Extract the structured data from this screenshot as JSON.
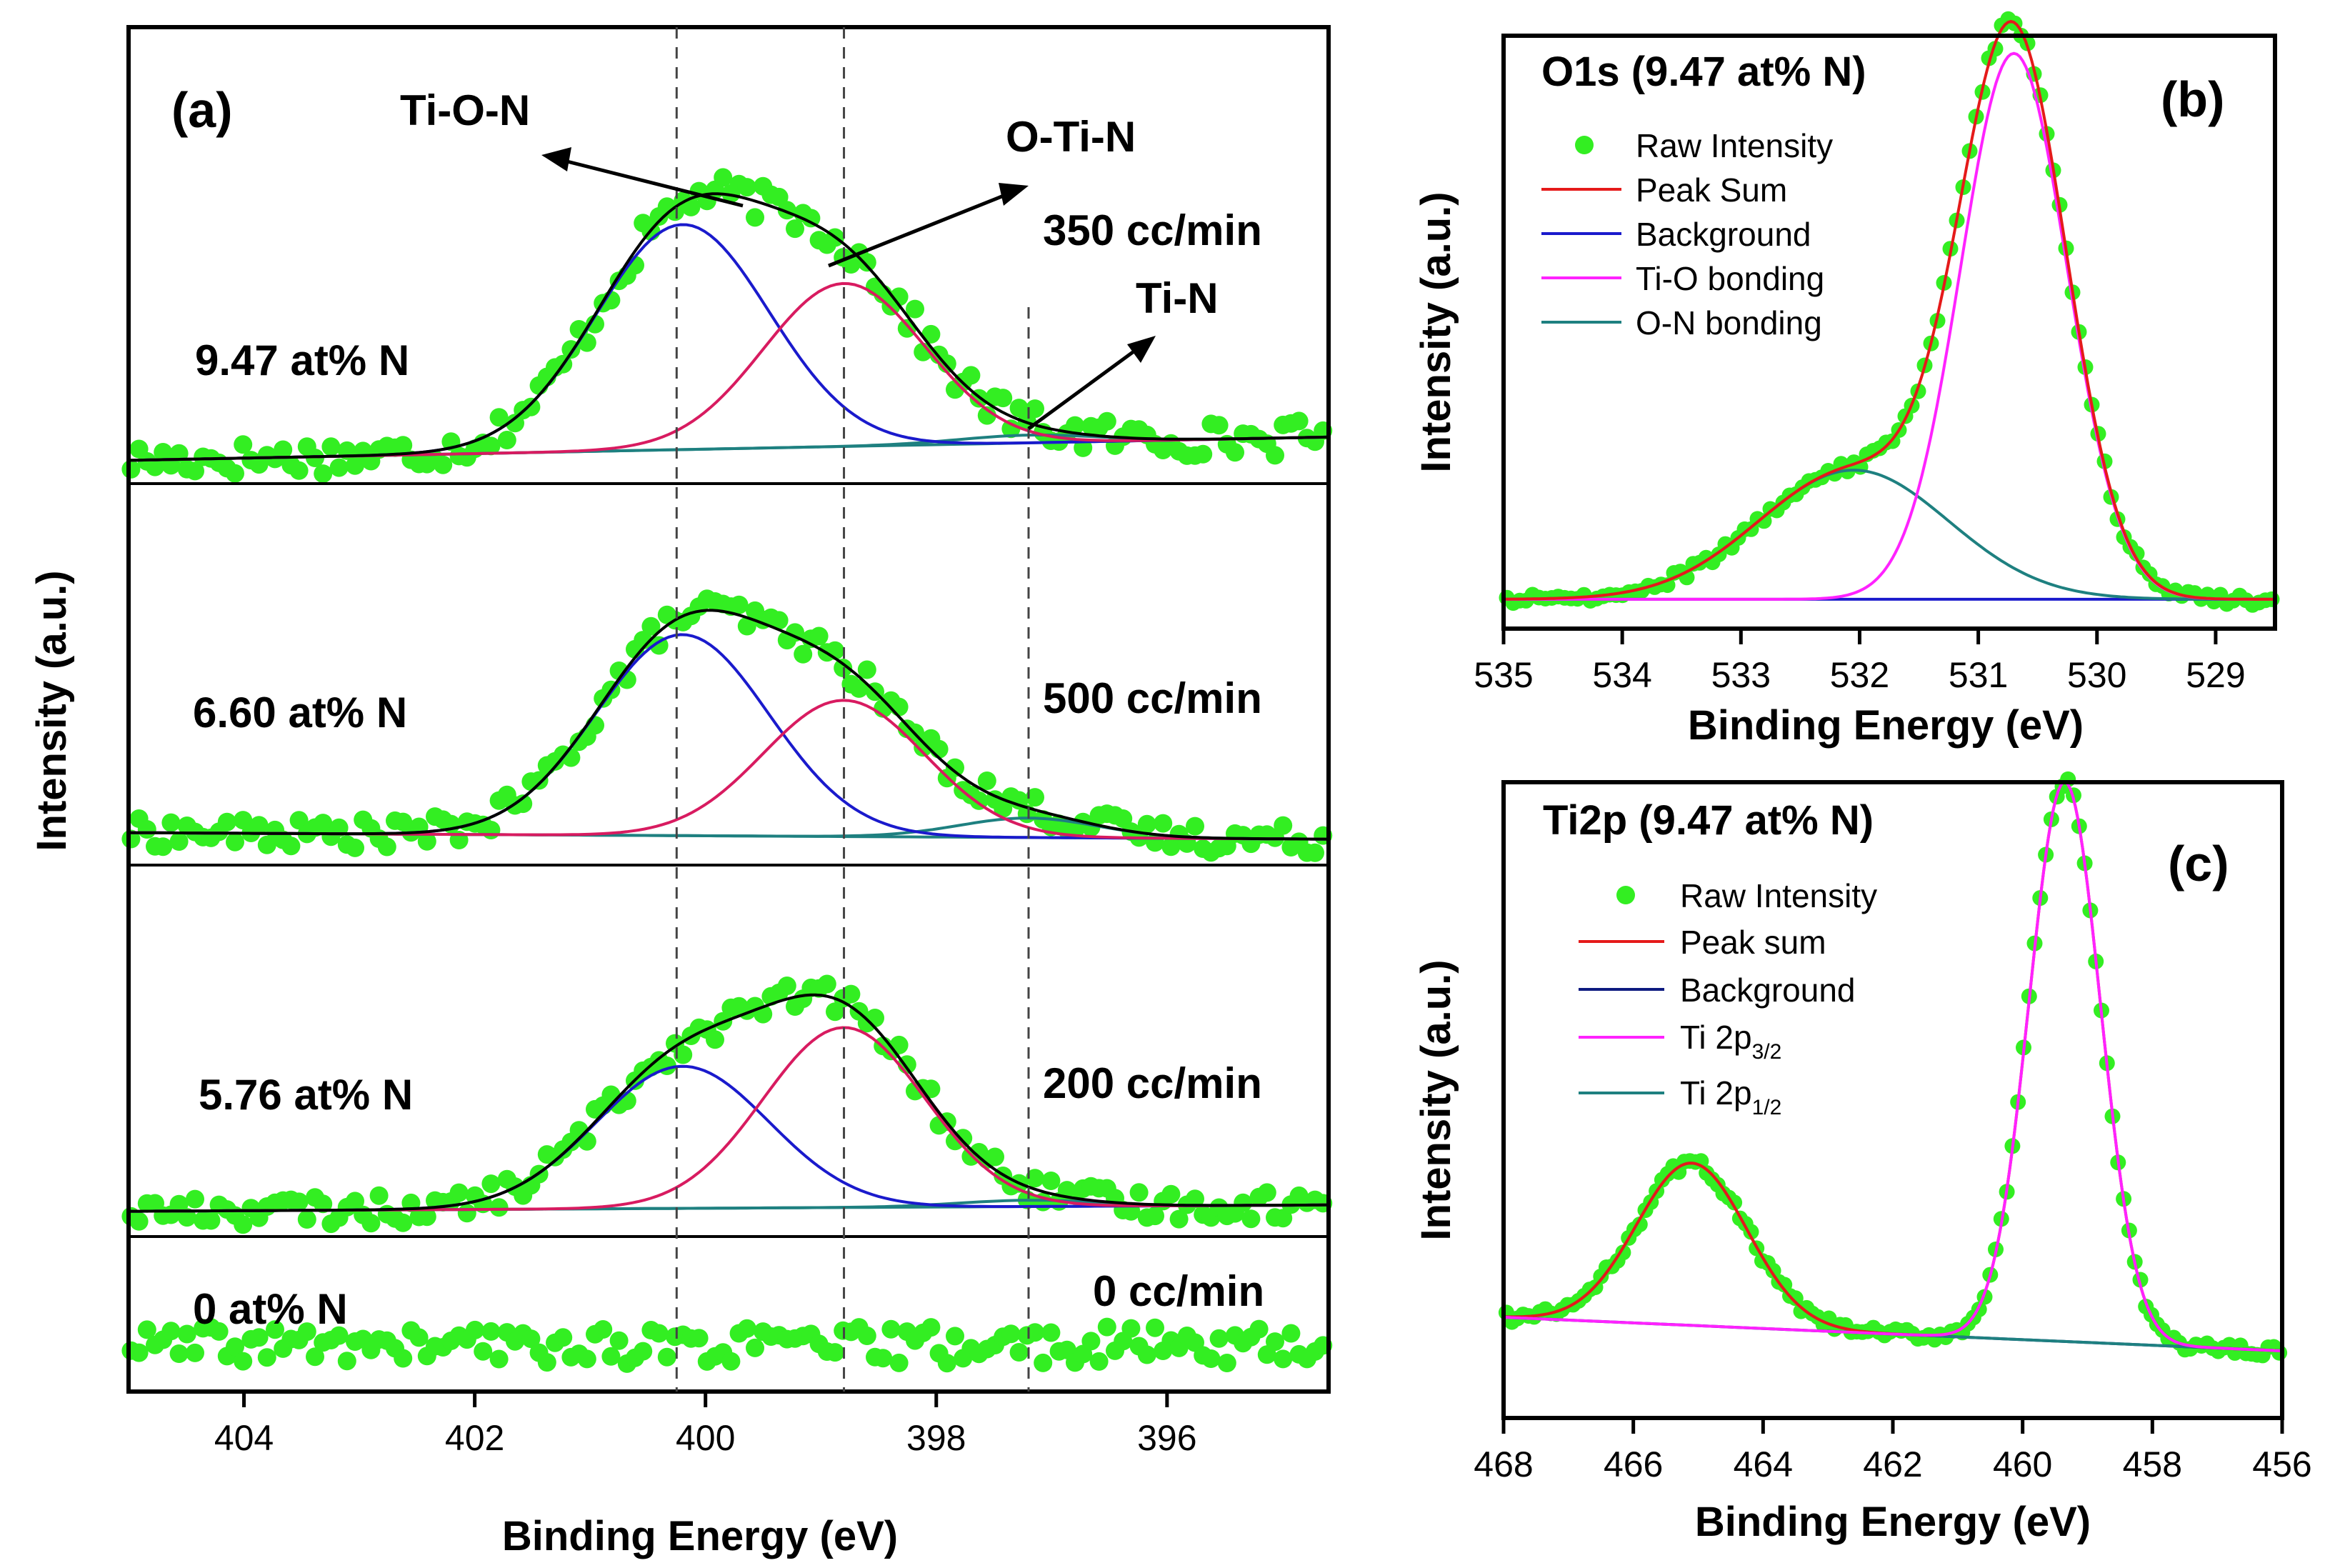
{
  "colors": {
    "raw": "#33ee22",
    "sum_a": "#000000",
    "ti_o_n": "#1a1acc",
    "o_ti_n": "#d81b60",
    "ti_n": "#1e8080",
    "peak_sum": "#e51a1a",
    "background_bc": "#1a1acc",
    "background_c": "#0d1a80",
    "ti_o": "#ff22ff",
    "o_n": "#1e8080",
    "ti2p32": "#ff22ff",
    "ti2p12": "#1e8080"
  },
  "chart_data": [
    {
      "panel": "(a)",
      "type": "line",
      "xlabel": "Binding Energy (eV)",
      "ylabel": "Intensity (a.u.)",
      "xlim": [
        405,
        394.6
      ],
      "x_ticks": [
        404,
        402,
        400,
        398,
        396
      ],
      "x_tick_labels": [
        "404",
        "402",
        "400",
        "398",
        "396"
      ],
      "reference_lines_eV": [
        400.25,
        398.8,
        397.2
      ],
      "peak_labels": [
        {
          "text": "Ti-O-N",
          "color": "#1a1acc"
        },
        {
          "text": "O-Ti-N",
          "color": "#d81b60"
        },
        {
          "text": "Ti-N",
          "color": "#0d1a80"
        }
      ],
      "rows": [
        {
          "label": "9.47 at% N",
          "flow": "350 cc/min",
          "baseline": 0.06,
          "background_end": 0.12,
          "tion_amp": 0.58,
          "otin_amp": 0.42,
          "tin_amp": 0.02
        },
        {
          "label": "6.60 at% N",
          "flow": "500 cc/min",
          "baseline": 0.1,
          "background_end": 0.08,
          "tion_amp": 0.62,
          "otin_amp": 0.42,
          "tin_amp": 0.06
        },
        {
          "label": "5.76 at% N",
          "flow": "200 cc/min",
          "baseline": 0.08,
          "background_end": 0.1,
          "tion_amp": 0.45,
          "otin_amp": 0.57,
          "tin_amp": 0.02
        },
        {
          "label": "0 at% N",
          "flow": "0 cc/min",
          "baseline": 0.35,
          "background_end": 0.35,
          "tion_amp": 0,
          "otin_amp": 0,
          "tin_amp": 0
        }
      ],
      "peak_centers_eV": {
        "ti_o_n": 400.2,
        "o_ti_n": 398.8,
        "ti_n": 397.2
      },
      "peak_widths_eV": {
        "ti_o_n": 0.75,
        "o_ti_n": 0.7,
        "ti_n": 0.6
      }
    },
    {
      "panel": "(b)",
      "type": "line",
      "title": "O1s (9.47 at% N)",
      "xlabel": "Binding Energy (eV)",
      "ylabel": "Intensity (a.u.)",
      "xlim": [
        535,
        528.5
      ],
      "x_ticks": [
        535,
        534,
        533,
        532,
        531,
        530,
        529
      ],
      "x_tick_labels": [
        "535",
        "534",
        "533",
        "532",
        "531",
        "530",
        "529"
      ],
      "legend": [
        "Raw Intensity",
        "Peak Sum",
        "Background",
        "Ti-O bonding",
        "O-N bonding"
      ],
      "peaks": [
        {
          "name": "Ti-O bonding",
          "center": 530.7,
          "width": 0.45,
          "amp": 0.93
        },
        {
          "name": "O-N bonding",
          "center": 532.05,
          "width": 0.8,
          "amp": 0.22
        }
      ],
      "baseline": 0.05
    },
    {
      "panel": "(c)",
      "type": "line",
      "title": "Ti2p (9.47 at% N)",
      "xlabel": "Binding Energy (eV)",
      "ylabel": "Intensity (a.u.)",
      "xlim": [
        468,
        456
      ],
      "x_ticks": [
        468,
        466,
        464,
        462,
        460,
        458,
        456
      ],
      "x_tick_labels": [
        "468",
        "466",
        "464",
        "462",
        "460",
        "458",
        "456"
      ],
      "legend": [
        "Raw Intensity",
        "Peak sum",
        "Background",
        "Ti 2p3/2",
        "Ti 2p1/2"
      ],
      "peaks": [
        {
          "name": "Ti 2p3/2",
          "center": 459.35,
          "width": 0.55,
          "amp": 1.0
        },
        {
          "name": "Ti 2p1/2",
          "center": 465.1,
          "width": 0.85,
          "amp": 0.29
        }
      ],
      "background_start": 0.18,
      "background_end": 0.12
    }
  ],
  "labels": {
    "a_letter": "(a)",
    "b_letter": "(b)",
    "c_letter": "(c)",
    "leg_b": [
      "Raw Intensity",
      "Peak Sum",
      "Background",
      "Ti-O bonding",
      "O-N bonding"
    ],
    "leg_c_raw": "Raw Intensity",
    "leg_c_sum": "Peak sum",
    "leg_c_bg": "Background",
    "leg_c_p32_base": "Ti 2p",
    "leg_c_p32_sub": "3/2",
    "leg_c_p12_base": "Ti 2p",
    "leg_c_p12_sub": "1/2"
  }
}
